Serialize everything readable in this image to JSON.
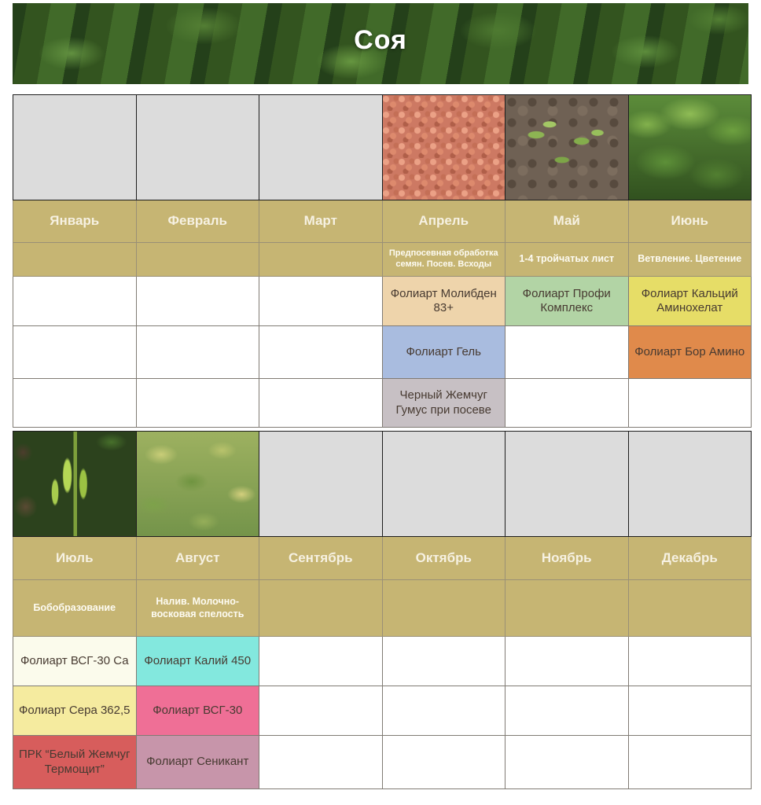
{
  "header": {
    "title": "Соя"
  },
  "colors": {
    "table_accent_tan": "#c6b573",
    "empty_photo_gray": "#dcdcdc",
    "product_cells": {
      "foliart_molybdenum": "#eed4ab",
      "foliart_profi_complex": "#b2d4a5",
      "foliart_calcium_aminochelate": "#e6dd67",
      "foliart_gel": "#a9bcdf",
      "foliart_boron_amino": "#e08a4b",
      "black_pearl_humus": "#c7c0c4",
      "foliart_vsg30_ca": "#fbfbec",
      "foliart_potassium_450": "#83e8de",
      "foliart_sulfur_3625": "#f5eb9f",
      "foliart_vsg30": "#ef6f96",
      "prk_white_pearl_thermoshield": "#d75d5c",
      "foliart_senicant": "#c795aa"
    }
  },
  "photos": {
    "april": "treated-soybean-seeds-photo",
    "may": "soybean-seedlings-photo",
    "june": "young-soybean-plants-photo",
    "july": "soybean-pods-photo",
    "august": "ripening-soybean-field-photo"
  },
  "t1": {
    "months": [
      "Январь",
      "Февраль",
      "Март",
      "Апрель",
      "Май",
      "Июнь"
    ],
    "stages": [
      "",
      "",
      "",
      "Предпосевная обработка семян. Посев. Всходы",
      "1-4 тройчатых лист",
      "Ветвление. Цветение"
    ],
    "products": [
      [
        "",
        "",
        "",
        "Фолиарт Молибден 83+",
        "Фолиарт Профи Комплекс",
        "Фолиарт Кальций Аминохелат"
      ],
      [
        "",
        "",
        "",
        "Фолиарт Гель",
        "",
        "Фолиарт Бор Амино"
      ],
      [
        "",
        "",
        "",
        "Черный Жемчуг Гумус при посеве",
        "",
        ""
      ]
    ]
  },
  "t2": {
    "months": [
      "Июль",
      "Август",
      "Сентябрь",
      "Октябрь",
      "Ноябрь",
      "Декабрь"
    ],
    "stages": [
      "Бобобразование",
      "Налив. Молочно-восковая спелость",
      "",
      "",
      "",
      ""
    ],
    "products": [
      [
        "Фолиарт ВСГ-30 Са",
        "Фолиарт Калий 450",
        "",
        "",
        "",
        ""
      ],
      [
        "Фолиарт Сера 362,5",
        "Фолиарт ВСГ-30",
        "",
        "",
        "",
        ""
      ],
      [
        "ПРК “Белый Жемчуг Термощит”",
        "Фолиарт Сеникант",
        "",
        "",
        "",
        ""
      ]
    ]
  }
}
